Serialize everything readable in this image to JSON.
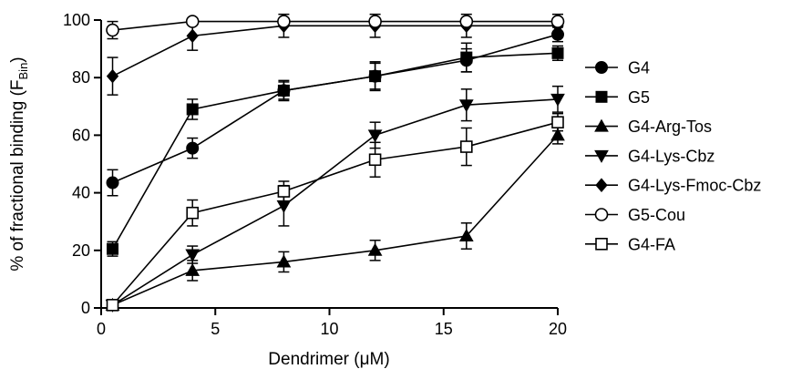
{
  "chart_data": {
    "type": "line",
    "title": "",
    "xlabel": "Dendrimer (μM)",
    "ylabel_main": "% of fractional binding (F",
    "ylabel_sub": "Bin",
    "ylabel_end": ")",
    "xlim": [
      0,
      20
    ],
    "ylim": [
      0,
      100
    ],
    "xticks": [
      0,
      5,
      10,
      15,
      20
    ],
    "yticks": [
      0,
      20,
      40,
      60,
      80,
      100
    ],
    "grid": false,
    "legend_position": "right",
    "x": [
      0.5,
      4,
      8,
      12,
      16,
      20
    ],
    "series": [
      {
        "name": "G4",
        "marker": "circle-filled",
        "values": [
          43.5,
          55.5,
          75.5,
          80.5,
          86,
          95
        ],
        "errors": [
          4.5,
          3.5,
          3.5,
          4.5,
          4,
          2.5
        ]
      },
      {
        "name": "G5",
        "marker": "square-filled",
        "values": [
          20.5,
          69,
          75.5,
          80.5,
          87,
          88.5
        ],
        "errors": [
          2.5,
          3.5,
          3,
          5,
          5,
          2.5
        ]
      },
      {
        "name": "G4-Arg-Tos",
        "marker": "triangle-up-filled",
        "values": [
          1,
          13,
          16,
          20,
          25,
          60
        ],
        "errors": [
          1,
          3.5,
          3.5,
          3.5,
          4.5,
          3
        ]
      },
      {
        "name": "G4-Lys-Cbz",
        "marker": "triangle-down-filled",
        "values": [
          1,
          18.5,
          35.5,
          60,
          70.5,
          72.5
        ],
        "errors": [
          1,
          3,
          7,
          4.5,
          5.5,
          4.5
        ]
      },
      {
        "name": "G4-Lys-Fmoc-Cbz",
        "marker": "diamond-filled",
        "values": [
          80.5,
          94.5,
          98,
          98,
          98,
          98
        ],
        "errors": [
          6.5,
          5,
          4,
          4,
          4,
          4
        ]
      },
      {
        "name": "G5-Cou",
        "marker": "circle-open",
        "values": [
          96.5,
          99.5,
          99.5,
          99.5,
          99.5,
          99.5
        ],
        "errors": [
          3,
          1,
          1,
          1,
          1,
          1
        ]
      },
      {
        "name": "G4-FA",
        "marker": "square-open",
        "values": [
          1,
          33,
          40.5,
          51.5,
          56,
          64.5
        ],
        "errors": [
          1,
          4.5,
          3.5,
          6,
          6.5,
          3
        ]
      }
    ]
  }
}
